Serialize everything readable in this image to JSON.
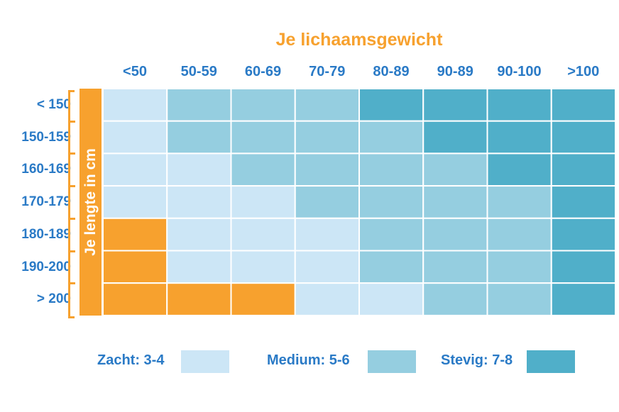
{
  "chart_data": {
    "type": "heatmap",
    "title": "Je lichaamsgewicht",
    "ylabel": "Je lengte in cm",
    "x_categories": [
      "<50",
      "50-59",
      "60-69",
      "70-79",
      "80-89",
      "90-89",
      "90-100",
      ">100"
    ],
    "y_categories": [
      "< 150",
      "150-159",
      "160-169",
      "170-179",
      "180-189",
      "190-200",
      "> 200"
    ],
    "levels": [
      {
        "key": "none",
        "label": "",
        "color": "#f7a12e"
      },
      {
        "key": "zacht",
        "label": "Zacht: 3-4",
        "color": "#cce6f6"
      },
      {
        "key": "medium",
        "label": "Medium: 5-6",
        "color": "#95cee0"
      },
      {
        "key": "stevig",
        "label": "Stevig: 7-8",
        "color": "#50afc9"
      }
    ],
    "values": [
      [
        "zacht",
        "medium",
        "medium",
        "medium",
        "stevig",
        "stevig",
        "stevig",
        "stevig"
      ],
      [
        "zacht",
        "medium",
        "medium",
        "medium",
        "medium",
        "stevig",
        "stevig",
        "stevig"
      ],
      [
        "zacht",
        "zacht",
        "medium",
        "medium",
        "medium",
        "medium",
        "stevig",
        "stevig"
      ],
      [
        "zacht",
        "zacht",
        "zacht",
        "medium",
        "medium",
        "medium",
        "medium",
        "stevig"
      ],
      [
        "none",
        "zacht",
        "zacht",
        "zacht",
        "medium",
        "medium",
        "medium",
        "stevig"
      ],
      [
        "none",
        "zacht",
        "zacht",
        "zacht",
        "medium",
        "medium",
        "medium",
        "stevig"
      ],
      [
        "none",
        "none",
        "none",
        "zacht",
        "zacht",
        "medium",
        "medium",
        "stevig"
      ]
    ],
    "legend": [
      "Zacht: 3-4",
      "Medium: 5-6",
      "Stevig: 7-8"
    ],
    "legend_placement": "bottom"
  }
}
